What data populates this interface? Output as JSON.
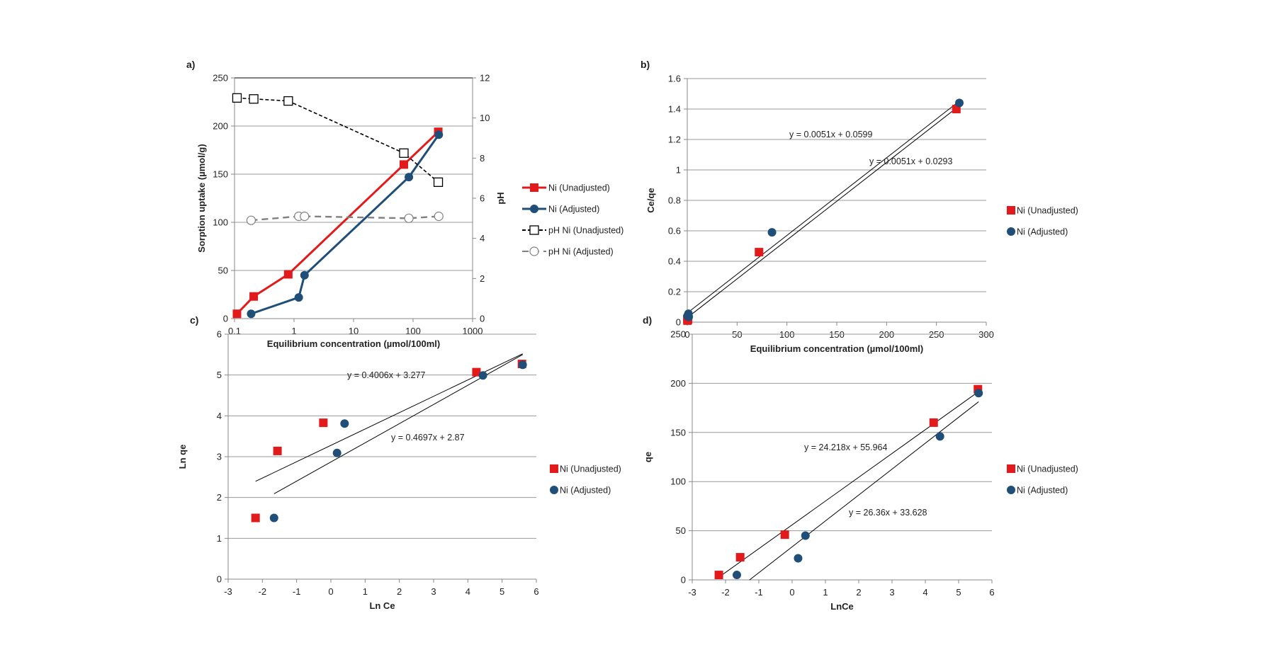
{
  "chart_data": [
    {
      "panel": "a)",
      "type": "line",
      "xlabel": "Equilibrium concentration (µmol/100ml)",
      "ylabel": "Sorption uptake (µmol/g)",
      "y2label": "pH",
      "xscale": "log",
      "xlim": [
        0.1,
        1000
      ],
      "ylim": [
        0,
        250
      ],
      "y2lim": [
        0,
        12
      ],
      "xticks": [
        0.1,
        1,
        10,
        100,
        1000
      ],
      "yticks": [
        0,
        50,
        100,
        150,
        200,
        250
      ],
      "y2ticks": [
        0,
        2,
        4,
        6,
        8,
        10,
        12
      ],
      "grid": true,
      "legend": "right",
      "series": [
        {
          "name": "Ni (Unadjusted)",
          "axis": "left",
          "color": "#e31a1c",
          "marker": "square",
          "line": "solid",
          "x": [
            0.11,
            0.21,
            0.8,
            70,
            265
          ],
          "y": [
            5,
            23,
            46,
            160,
            194
          ]
        },
        {
          "name": "Ni (Adjusted)",
          "axis": "left",
          "color": "#1f4e79",
          "marker": "circle",
          "line": "solid",
          "x": [
            0.19,
            1.2,
            1.5,
            85,
            270
          ],
          "y": [
            5,
            22,
            45,
            147,
            191
          ]
        },
        {
          "name": "pH Ni (Unadjusted)",
          "axis": "right",
          "color": "#000000",
          "marker": "open-square",
          "line": "dash",
          "x": [
            0.11,
            0.21,
            0.8,
            70,
            265
          ],
          "y": [
            11.0,
            10.95,
            10.85,
            8.25,
            6.8
          ]
        },
        {
          "name": "pH Ni (Adjusted)",
          "axis": "right",
          "color": "#808080",
          "marker": "open-circle",
          "line": "dash",
          "x": [
            0.19,
            1.2,
            1.5,
            85,
            270
          ],
          "y": [
            4.9,
            5.1,
            5.1,
            5.0,
            5.1
          ]
        }
      ]
    },
    {
      "panel": "b)",
      "type": "scatter",
      "xlabel": "Equilibrium concentration (µmol/100ml)",
      "ylabel": "Ce/qe",
      "xlim": [
        0,
        300
      ],
      "ylim": [
        0,
        1.6
      ],
      "xticks": [
        0,
        50,
        100,
        150,
        200,
        250,
        300
      ],
      "yticks": [
        0,
        0.2,
        0.4,
        0.6,
        0.8,
        1,
        1.2,
        1.4,
        1.6
      ],
      "grid": true,
      "legend": "right",
      "series": [
        {
          "name": "Ni (Unadjusted)",
          "color": "#e31a1c",
          "marker": "square",
          "x": [
            0.11,
            0.21,
            0.8,
            72,
            270
          ],
          "y": [
            0.02,
            0.01,
            0.017,
            0.46,
            1.4
          ]
        },
        {
          "name": "Ni (Adjusted)",
          "color": "#1f4e79",
          "marker": "circle",
          "x": [
            0.19,
            1.2,
            1.5,
            85,
            273
          ],
          "y": [
            0.04,
            0.055,
            0.035,
            0.59,
            1.44
          ]
        }
      ],
      "trendlines": [
        {
          "label": "y = 0.0051x + 0.0599",
          "slope": 0.0051,
          "intercept": 0.0599,
          "x": [
            0,
            272
          ]
        },
        {
          "label": "y = 0.0051x + 0.0293",
          "slope": 0.0051,
          "intercept": 0.0293,
          "x": [
            0,
            272
          ]
        }
      ]
    },
    {
      "panel": "c)",
      "type": "scatter",
      "xlabel": "Ln Ce",
      "ylabel": "Ln qe",
      "xlim": [
        -3,
        6
      ],
      "ylim": [
        0,
        6
      ],
      "xticks": [
        -3,
        -2,
        -1,
        0,
        1,
        2,
        3,
        4,
        5,
        6
      ],
      "yticks": [
        0,
        1,
        2,
        3,
        4,
        5,
        6
      ],
      "grid": true,
      "legend": "right",
      "series": [
        {
          "name": "Ni (Unadjusted)",
          "color": "#e31a1c",
          "marker": "square",
          "x": [
            -2.2,
            -1.56,
            -0.22,
            4.25,
            5.58
          ],
          "y": [
            1.5,
            3.14,
            3.83,
            5.07,
            5.27
          ]
        },
        {
          "name": "Ni (Adjusted)",
          "color": "#1f4e79",
          "marker": "circle",
          "x": [
            -1.66,
            0.18,
            0.4,
            4.44,
            5.6
          ],
          "y": [
            1.5,
            3.09,
            3.81,
            4.99,
            5.25
          ]
        }
      ],
      "trendlines": [
        {
          "label": "y = 0.4006x + 3.277",
          "slope": 0.4006,
          "intercept": 3.277,
          "x": [
            -2.2,
            5.6
          ]
        },
        {
          "label": "y = 0.4697x + 2.87",
          "slope": 0.4697,
          "intercept": 2.87,
          "x": [
            -1.66,
            5.6
          ]
        }
      ]
    },
    {
      "panel": "d)",
      "type": "scatter",
      "xlabel": "LnCe",
      "ylabel": "qe",
      "xlim": [
        -3,
        6
      ],
      "ylim": [
        0,
        250
      ],
      "xticks": [
        -3,
        -2,
        -1,
        0,
        1,
        2,
        3,
        4,
        5,
        6
      ],
      "yticks": [
        0,
        50,
        100,
        150,
        200,
        250
      ],
      "grid": true,
      "legend": "right",
      "series": [
        {
          "name": "Ni (Unadjusted)",
          "color": "#e31a1c",
          "marker": "square",
          "x": [
            -2.2,
            -1.56,
            -0.22,
            4.25,
            5.58
          ],
          "y": [
            5,
            23,
            46,
            160,
            194
          ]
        },
        {
          "name": "Ni (Adjusted)",
          "color": "#1f4e79",
          "marker": "circle",
          "x": [
            -1.66,
            0.18,
            0.4,
            4.44,
            5.6
          ],
          "y": [
            5,
            22,
            45,
            146,
            190
          ]
        }
      ],
      "trendlines": [
        {
          "label": "y = 24.218x + 55.964",
          "slope": 24.218,
          "intercept": 55.964,
          "x": [
            -2.2,
            5.6
          ]
        },
        {
          "label": "y = 26.36x + 33.628",
          "slope": 26.36,
          "intercept": 33.628,
          "x": [
            -1.28,
            5.6
          ]
        }
      ]
    }
  ]
}
